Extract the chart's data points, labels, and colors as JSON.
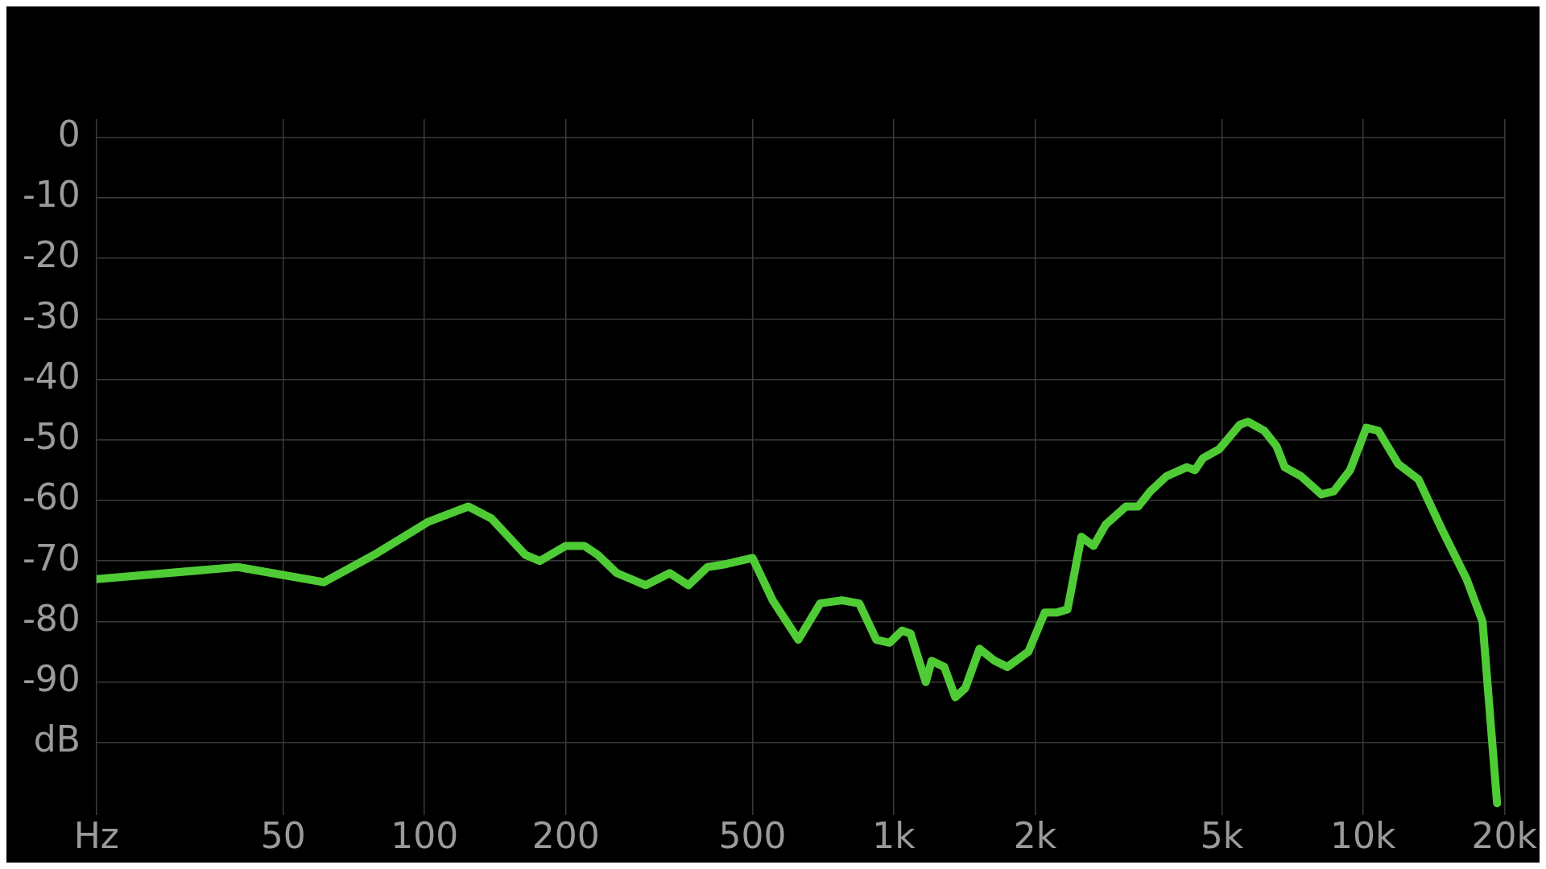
{
  "chart_data": {
    "type": "line",
    "xlabel": null,
    "x": [
      20,
      40,
      61,
      78,
      102,
      124,
      139,
      164,
      176,
      200,
      219,
      234,
      257,
      296,
      333,
      365,
      401,
      440,
      500,
      552,
      626,
      697,
      775,
      844,
      918,
      979,
      1042,
      1086,
      1170,
      1204,
      1281,
      1352,
      1420,
      1523,
      1641,
      1746,
      1935,
      2098,
      2226,
      2345,
      2510,
      2665,
      2828,
      3124,
      3317,
      3520,
      3811,
      4212,
      4384,
      4560,
      4940,
      5460,
      5685,
      6159,
      6538,
      6807,
      7376,
      8152,
      8656,
      9382,
      10160,
      10780,
      11890,
      13120,
      14770,
      16620,
      17970,
      19300
    ],
    "series": [
      {
        "color": "#4fcc35",
        "values": [
          -73,
          -71,
          -73.5,
          -69,
          -63.5,
          -61,
          -63,
          -69,
          -70,
          -67.5,
          -67.5,
          -69,
          -72,
          -74,
          -72,
          -74,
          -71,
          -70.5,
          -69.5,
          -76.5,
          -83,
          -77,
          -76.5,
          -77,
          -83,
          -83.5,
          -81.5,
          -82,
          -90,
          -86.5,
          -87.5,
          -92.5,
          -91,
          -84.5,
          -86.5,
          -87.5,
          -85,
          -78.5,
          -78.5,
          -78,
          -66,
          -67.5,
          -64,
          -61,
          -61,
          -58.5,
          -56,
          -54.5,
          -55,
          -53,
          -51.5,
          -47.5,
          -47,
          -48.5,
          -51,
          -54.5,
          -56,
          -59,
          -58.5,
          -55,
          -48,
          -48.5,
          -54,
          -56.5,
          -65,
          -73,
          -80,
          -110
        ]
      }
    ],
    "log": "x",
    "xlim": [
      20,
      20000
    ],
    "ylim": [
      -112,
      3
    ],
    "xticks": [
      {
        "value": 20,
        "label": "Hz"
      },
      50,
      100,
      200,
      500,
      {
        "value": 1000,
        "label": "1k"
      },
      {
        "value": 2000,
        "label": "2k"
      },
      {
        "value": 5000,
        "label": "5k"
      },
      {
        "value": 10000,
        "label": "10k"
      },
      {
        "value": 20000,
        "label": "20k"
      }
    ],
    "yticks": [
      0,
      -10,
      -20,
      -30,
      -40,
      -50,
      -60,
      -70,
      -80,
      -90,
      {
        "value": -100,
        "label": "dB"
      }
    ],
    "grid": true,
    "legend": false,
    "marker": "none",
    "line_style": "solid"
  }
}
